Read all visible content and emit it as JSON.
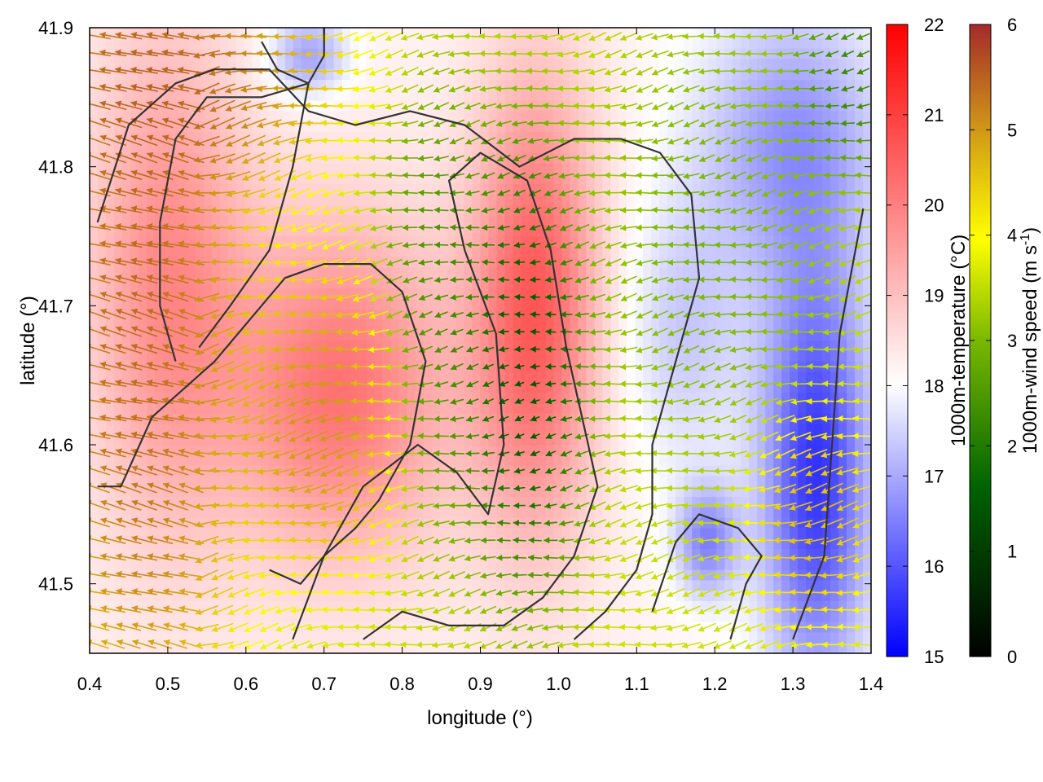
{
  "chart_data": {
    "type": "heatmap",
    "subtype": "temperature field with wind vectors and contours",
    "xlabel": "longitude (°)",
    "ylabel": "latitude (°)",
    "xlim": [
      0.4,
      1.4
    ],
    "ylim": [
      41.45,
      41.9
    ],
    "x_ticks": [
      0.4,
      0.5,
      0.6,
      0.7,
      0.8,
      0.9,
      1.0,
      1.1,
      1.2,
      1.3,
      1.4
    ],
    "y_ticks": [
      41.5,
      41.6,
      41.7,
      41.8,
      41.9
    ],
    "x_tick_labels": [
      "0.4",
      "0.5",
      "0.6",
      "0.7",
      "0.8",
      "0.9",
      "1.0",
      "1.1",
      "1.2",
      "1.3",
      "1.4"
    ],
    "y_tick_labels": [
      "41.5",
      "41.6",
      "41.7",
      "41.8",
      "41.9"
    ],
    "grid": false,
    "colorbars": [
      {
        "label": "1000m-temperature (°C)",
        "range": [
          15,
          22
        ],
        "ticks": [
          15,
          16,
          17,
          18,
          19,
          20,
          21,
          22
        ],
        "tick_labels": [
          "15",
          "16",
          "17",
          "18",
          "19",
          "20",
          "21",
          "22"
        ],
        "colors": [
          "#0000ff",
          "#ffffff",
          "#ff0000"
        ]
      },
      {
        "label_main": "1000m-wind speed (m s",
        "label_sup": "-1",
        "label_end": ")",
        "range": [
          0,
          6
        ],
        "ticks": [
          0,
          1,
          2,
          3,
          4,
          5,
          6
        ],
        "tick_labels": [
          "0",
          "1",
          "2",
          "3",
          "4",
          "5",
          "6"
        ],
        "colors": [
          "#000000",
          "#006400",
          "#7ab800",
          "#ffff00",
          "#d4a017",
          "#a52a2a"
        ]
      }
    ],
    "temperature_field": {
      "base_c": 18.2,
      "centers": [
        {
          "lon": 0.97,
          "lat": 41.7,
          "temp_c": 20.6,
          "sigma_lon": 0.08,
          "sigma_lat": 0.16
        },
        {
          "lon": 0.72,
          "lat": 41.64,
          "temp_c": 20.2,
          "sigma_lon": 0.14,
          "sigma_lat": 0.12
        },
        {
          "lon": 0.5,
          "lat": 41.72,
          "temp_c": 19.8,
          "sigma_lon": 0.1,
          "sigma_lat": 0.18
        },
        {
          "lon": 1.33,
          "lat": 41.58,
          "temp_c": 15.6,
          "sigma_lon": 0.07,
          "sigma_lat": 0.15
        },
        {
          "lon": 1.3,
          "lat": 41.82,
          "temp_c": 16.8,
          "sigma_lon": 0.12,
          "sigma_lat": 0.1
        },
        {
          "lon": 0.68,
          "lat": 41.88,
          "temp_c": 16.9,
          "sigma_lon": 0.05,
          "sigma_lat": 0.03
        },
        {
          "lon": 1.19,
          "lat": 41.53,
          "temp_c": 16.6,
          "sigma_lon": 0.04,
          "sigma_lat": 0.04
        },
        {
          "lon": 1.16,
          "lat": 41.68,
          "temp_c": 17.4,
          "sigma_lon": 0.08,
          "sigma_lat": 0.1
        }
      ]
    },
    "wind_field": {
      "centers": [
        {
          "lon": 0.47,
          "lat": 41.7,
          "speed_ms": 6.0,
          "sigma_lon": 0.1,
          "sigma_lat": 0.25
        },
        {
          "lon": 0.52,
          "lat": 41.86,
          "speed_ms": 5.8,
          "sigma_lon": 0.15,
          "sigma_lat": 0.06
        },
        {
          "lon": 0.7,
          "lat": 41.62,
          "speed_ms": 5.5,
          "sigma_lon": 0.08,
          "sigma_lat": 0.08
        },
        {
          "lon": 0.96,
          "lat": 41.66,
          "speed_ms": 0.7,
          "sigma_lon": 0.06,
          "sigma_lat": 0.12
        },
        {
          "lon": 0.85,
          "lat": 41.7,
          "speed_ms": 2.0,
          "sigma_lon": 0.06,
          "sigma_lat": 0.12
        },
        {
          "lon": 1.33,
          "lat": 41.55,
          "speed_ms": 5.0,
          "sigma_lon": 0.06,
          "sigma_lat": 0.06
        },
        {
          "lon": 1.2,
          "lat": 41.75,
          "speed_ms": 2.8,
          "sigma_lon": 0.12,
          "sigma_lat": 0.12
        },
        {
          "lon": 1.37,
          "lat": 41.86,
          "speed_ms": 1.8,
          "sigma_lon": 0.05,
          "sigma_lat": 0.05
        }
      ],
      "default_speed_ms": 3.6,
      "mean_direction": "toward west (easterly flow), westerly-turning from the west edge",
      "grid_step_lon": 0.02,
      "grid_step_lat": 0.0125
    },
    "contours": [
      {
        "level_c": 19.0,
        "points": [
          [
            0.66,
            41.46
          ],
          [
            0.7,
            41.52
          ],
          [
            0.75,
            41.57
          ],
          [
            0.82,
            41.6
          ],
          [
            0.87,
            41.58
          ],
          [
            0.91,
            41.55
          ],
          [
            0.93,
            41.6
          ],
          [
            0.92,
            41.68
          ],
          [
            0.88,
            41.74
          ],
          [
            0.86,
            41.79
          ],
          [
            0.9,
            41.81
          ],
          [
            0.96,
            41.79
          ],
          [
            0.99,
            41.74
          ],
          [
            1.01,
            41.67
          ],
          [
            1.03,
            41.62
          ],
          [
            1.05,
            41.57
          ],
          [
            1.02,
            41.52
          ],
          [
            0.98,
            41.49
          ],
          [
            0.93,
            41.47
          ],
          [
            0.86,
            41.47
          ],
          [
            0.8,
            41.48
          ],
          [
            0.75,
            41.46
          ]
        ]
      },
      {
        "level_c": 19.0,
        "points": [
          [
            0.41,
            41.57
          ],
          [
            0.44,
            41.57
          ],
          [
            0.48,
            41.62
          ],
          [
            0.56,
            41.66
          ],
          [
            0.62,
            41.7
          ],
          [
            0.65,
            41.72
          ],
          [
            0.7,
            41.73
          ],
          [
            0.76,
            41.73
          ],
          [
            0.8,
            41.71
          ],
          [
            0.83,
            41.66
          ],
          [
            0.81,
            41.6
          ],
          [
            0.77,
            41.56
          ],
          [
            0.74,
            41.54
          ],
          [
            0.7,
            41.52
          ],
          [
            0.67,
            41.5
          ],
          [
            0.63,
            41.51
          ]
        ]
      },
      {
        "level_c": 18.0,
        "points": [
          [
            0.41,
            41.76
          ],
          [
            0.45,
            41.83
          ],
          [
            0.51,
            41.86
          ],
          [
            0.56,
            41.87
          ],
          [
            0.63,
            41.87
          ],
          [
            0.68,
            41.84
          ],
          [
            0.74,
            41.83
          ],
          [
            0.81,
            41.84
          ],
          [
            0.88,
            41.83
          ],
          [
            0.95,
            41.8
          ],
          [
            1.02,
            41.82
          ],
          [
            1.08,
            41.82
          ],
          [
            1.13,
            41.81
          ],
          [
            1.17,
            41.78
          ],
          [
            1.18,
            41.72
          ],
          [
            1.15,
            41.66
          ],
          [
            1.12,
            41.6
          ],
          [
            1.12,
            41.55
          ],
          [
            1.1,
            41.51
          ],
          [
            1.06,
            41.48
          ],
          [
            1.02,
            41.46
          ]
        ]
      },
      {
        "level_c": 18.0,
        "points": [
          [
            0.51,
            41.66
          ],
          [
            0.49,
            41.7
          ],
          [
            0.49,
            41.76
          ],
          [
            0.51,
            41.82
          ],
          [
            0.55,
            41.85
          ],
          [
            0.62,
            41.85
          ],
          [
            0.68,
            41.86
          ],
          [
            0.66,
            41.8
          ],
          [
            0.63,
            41.74
          ],
          [
            0.58,
            41.7
          ],
          [
            0.54,
            41.67
          ]
        ]
      },
      {
        "level_c": 17.0,
        "points": [
          [
            1.3,
            41.46
          ],
          [
            1.34,
            41.52
          ],
          [
            1.35,
            41.6
          ],
          [
            1.36,
            41.68
          ],
          [
            1.38,
            41.74
          ],
          [
            1.39,
            41.77
          ]
        ]
      },
      {
        "level_c": 17.0,
        "points": [
          [
            1.22,
            41.46
          ],
          [
            1.24,
            41.5
          ],
          [
            1.26,
            41.52
          ],
          [
            1.23,
            41.54
          ],
          [
            1.18,
            41.55
          ],
          [
            1.15,
            41.53
          ],
          [
            1.12,
            41.48
          ]
        ]
      },
      {
        "level_c": 18.0,
        "points": [
          [
            0.62,
            41.89
          ],
          [
            0.64,
            41.87
          ],
          [
            0.68,
            41.86
          ],
          [
            0.7,
            41.88
          ],
          [
            0.7,
            41.9
          ]
        ]
      }
    ]
  }
}
